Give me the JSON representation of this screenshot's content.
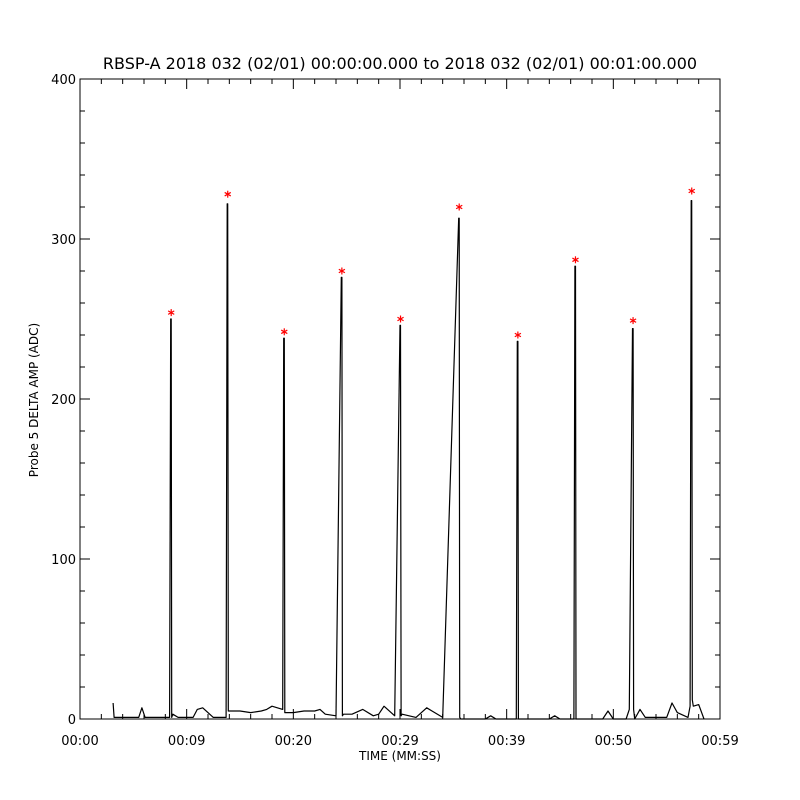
{
  "chart_data": {
    "type": "line",
    "title": "RBSP-A 2018 032 (02/01) 00:00:00.000 to 2018 032 (02/01) 00:01:00.000",
    "xlabel": "TIME (MM:SS)",
    "ylabel": "Probe 5 DELTA AMP (ADC)",
    "xlim": [
      0,
      60
    ],
    "ylim": [
      0,
      400
    ],
    "x_ticks": [
      {
        "value": 0,
        "label": "00:00"
      },
      {
        "value": 10,
        "label": "00:09"
      },
      {
        "value": 20,
        "label": "00:20"
      },
      {
        "value": 30,
        "label": "00:29"
      },
      {
        "value": 40,
        "label": "00:39"
      },
      {
        "value": 50,
        "label": "00:50"
      },
      {
        "value": 60,
        "label": "00:59"
      }
    ],
    "y_ticks": [
      0,
      100,
      200,
      300,
      400
    ],
    "grid": false,
    "series": [
      {
        "color": "#000000",
        "x": [
          3.1,
          3.2,
          5.5,
          5.8,
          6.1,
          8.4,
          8.5,
          8.55,
          8.6,
          8.7,
          9.2,
          10.6,
          11.0,
          11.5,
          12.5,
          13.7,
          13.8,
          13.85,
          13.9,
          14.0,
          15.0,
          16.0,
          17.0,
          17.5,
          18.0,
          19.0,
          19.1,
          19.15,
          19.2,
          19.3,
          20.0,
          21.0,
          22.0,
          22.5,
          23.0,
          24.0,
          24.5,
          24.55,
          24.6,
          24.7,
          25.5,
          26.5,
          27.5,
          28.0,
          28.5,
          29.5,
          30.0,
          30.05,
          30.1,
          30.2,
          31.5,
          32.5,
          33.0,
          34.0,
          35.5,
          35.55,
          35.6,
          35.7,
          38.0,
          38.5,
          39.0,
          40.9,
          41.0,
          41.05,
          41.1,
          41.2,
          44.0,
          44.5,
          45.0,
          46.3,
          46.4,
          46.45,
          46.5,
          46.6,
          49.0,
          49.5,
          50.0,
          51.2,
          51.5,
          51.8,
          51.85,
          51.9,
          52.0,
          52.5,
          53.0,
          55.0,
          55.5,
          56.0,
          57.0,
          57.2,
          57.3,
          57.35,
          57.4,
          57.5,
          58.0,
          58.5
        ],
        "y": [
          10,
          1,
          1,
          7,
          1,
          1,
          250,
          250,
          1,
          3,
          1,
          1,
          6,
          7,
          1,
          1,
          322,
          322,
          5,
          5,
          5,
          4,
          5,
          6,
          8,
          6,
          238,
          238,
          4,
          4,
          4,
          5,
          5,
          6,
          3,
          2,
          276,
          276,
          2,
          3,
          3,
          6,
          2,
          3,
          8,
          2,
          246,
          246,
          2,
          3,
          1,
          7,
          5,
          1,
          313,
          313,
          1,
          0,
          0,
          2,
          0,
          0,
          236,
          236,
          0,
          0,
          0,
          2,
          0,
          0,
          283,
          283,
          0,
          0,
          0,
          5,
          0,
          0,
          6,
          244,
          244,
          6,
          0,
          6,
          1,
          1,
          10,
          4,
          1,
          8,
          324,
          324,
          12,
          8,
          9,
          0
        ]
      }
    ],
    "peaks": {
      "color": "#ff0000",
      "marker": "*",
      "x": [
        8.55,
        13.85,
        19.15,
        24.55,
        30.05,
        35.55,
        41.05,
        46.45,
        51.85,
        57.35
      ],
      "y": [
        254,
        328,
        242,
        280,
        250,
        320,
        240,
        287,
        249,
        330
      ]
    }
  }
}
